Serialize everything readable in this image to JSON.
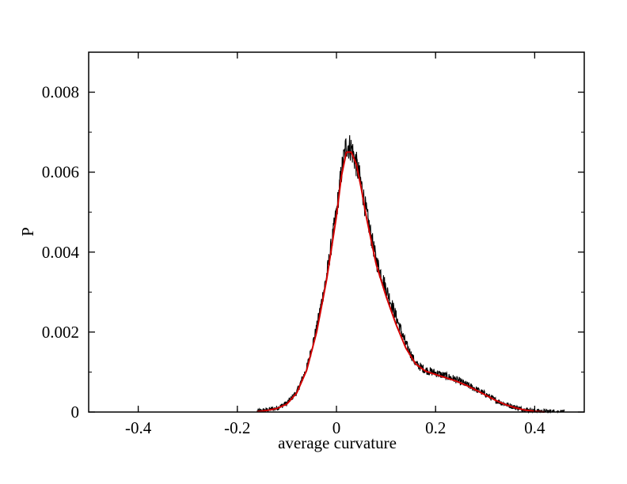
{
  "chart_data": {
    "type": "line",
    "title": "",
    "xlabel": "average curvature",
    "ylabel": "P",
    "xlim": [
      -0.5,
      0.5
    ],
    "ylim": [
      0,
      0.009
    ],
    "x_ticks": [
      -0.4,
      -0.2,
      0,
      0.2,
      0.4
    ],
    "x_tick_labels": [
      "-0.4",
      "-0.2",
      "0",
      "0.2",
      "0.4"
    ],
    "y_ticks": [
      0,
      0.002,
      0.004,
      0.006,
      0.008
    ],
    "y_tick_labels": [
      "0",
      "0.002",
      "0.004",
      "0.006",
      "0.008"
    ],
    "grid": false,
    "legend": "none",
    "series": [
      {
        "color": "#000000",
        "style": "noisy histogram",
        "x": [
          -0.16,
          -0.14,
          -0.12,
          -0.1,
          -0.08,
          -0.06,
          -0.04,
          -0.02,
          0.0,
          0.01,
          0.02,
          0.03,
          0.04,
          0.05,
          0.06,
          0.08,
          0.1,
          0.12,
          0.14,
          0.16,
          0.18,
          0.2,
          0.22,
          0.24,
          0.26,
          0.28,
          0.3,
          0.32,
          0.34,
          0.36,
          0.38,
          0.4,
          0.42,
          0.44,
          0.46
        ],
        "y": [
          2e-05,
          5e-05,
          0.0001,
          0.00022,
          0.0005,
          0.0011,
          0.0021,
          0.0034,
          0.005,
          0.006,
          0.0067,
          0.0066,
          0.0062,
          0.0057,
          0.005,
          0.0038,
          0.0031,
          0.0024,
          0.0017,
          0.0012,
          0.00105,
          0.00098,
          0.0009,
          0.00082,
          0.0007,
          0.00058,
          0.00045,
          0.0003,
          0.0002,
          0.00012,
          6e-05,
          3e-05,
          1e-05,
          1e-05,
          0.0
        ]
      },
      {
        "color": "#d40000",
        "style": "smooth fit",
        "x": [
          -0.16,
          -0.14,
          -0.12,
          -0.1,
          -0.08,
          -0.06,
          -0.04,
          -0.02,
          0.0,
          0.01,
          0.02,
          0.03,
          0.04,
          0.05,
          0.06,
          0.08,
          0.1,
          0.12,
          0.14,
          0.16,
          0.18,
          0.2,
          0.22,
          0.24,
          0.26,
          0.28,
          0.3,
          0.32,
          0.34,
          0.36,
          0.38,
          0.4,
          0.42
        ],
        "y": [
          1e-05,
          4e-05,
          9e-05,
          0.0002,
          0.00048,
          0.00105,
          0.002,
          0.0033,
          0.0049,
          0.0059,
          0.0065,
          0.0065,
          0.0062,
          0.0056,
          0.0049,
          0.0037,
          0.0029,
          0.0022,
          0.0016,
          0.0012,
          0.00102,
          0.00094,
          0.00086,
          0.00078,
          0.00068,
          0.00056,
          0.00043,
          0.0003,
          0.00019,
          0.00011,
          5e-05,
          2e-05,
          0.0
        ]
      }
    ]
  }
}
